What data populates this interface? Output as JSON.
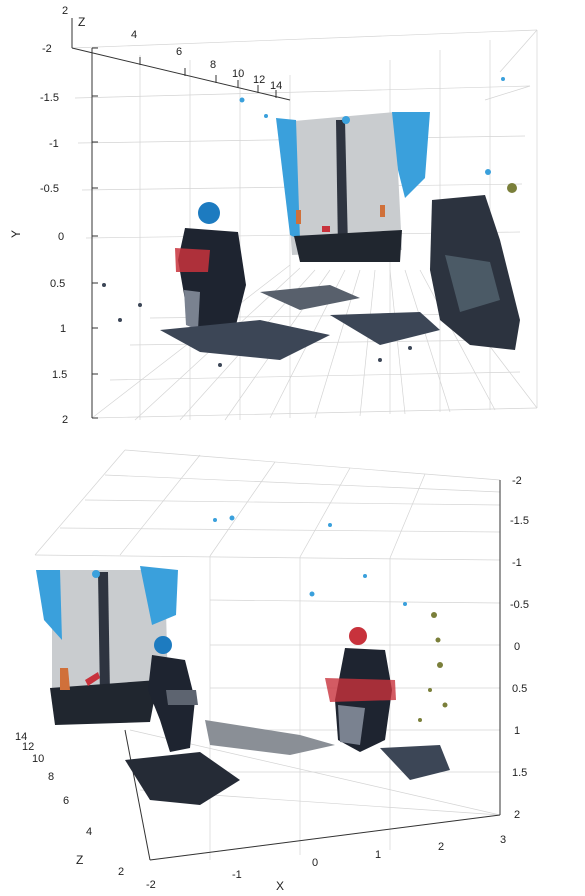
{
  "plot_top": {
    "z_axis_label": "Z",
    "y_axis_label": "Y",
    "z_corner_tick": "2",
    "y_ticks": [
      "-2",
      "-1.5",
      "-1",
      "-0.5",
      "0",
      "0.5",
      "1",
      "1.5",
      "2"
    ],
    "z_ticks": [
      "4",
      "6",
      "8",
      "10",
      "12",
      "14"
    ]
  },
  "plot_bottom": {
    "x_axis_label": "X",
    "z_axis_label": "Z",
    "y_ticks": [
      "-2",
      "-1.5",
      "-1",
      "-0.5",
      "0",
      "0.5",
      "1",
      "1.5",
      "2"
    ],
    "x_ticks": [
      "-2",
      "-1",
      "0",
      "1",
      "2",
      "3"
    ],
    "z_ticks": [
      "2",
      "4",
      "6",
      "8",
      "10",
      "12",
      "14"
    ]
  },
  "colors": {
    "truck_body": "#c9cccf",
    "truck_edge": "#3aa0dc",
    "rider_helmet": "#1d7bc0",
    "rider_dark": "#1e2430",
    "debris": "#3c4656",
    "red_accent": "#c8323c",
    "olive": "#7a7f3a"
  }
}
